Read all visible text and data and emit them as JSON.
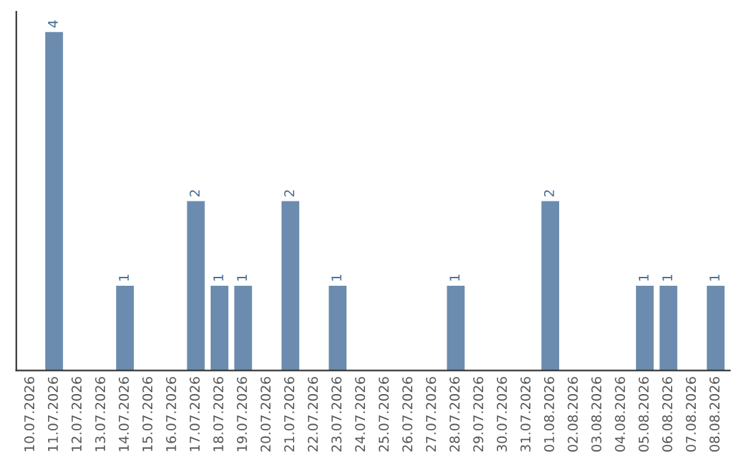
{
  "chart_data": {
    "type": "bar",
    "categories": [
      "10.07.2026",
      "11.07.2026",
      "12.07.2026",
      "13.07.2026",
      "14.07.2026",
      "15.07.2026",
      "16.07.2026",
      "17.07.2026",
      "18.07.2026",
      "19.07.2026",
      "20.07.2026",
      "21.07.2026",
      "22.07.2026",
      "23.07.2026",
      "24.07.2026",
      "25.07.2026",
      "26.07.2026",
      "27.07.2026",
      "28.07.2026",
      "29.07.2026",
      "30.07.2026",
      "31.07.2026",
      "01.08.2026",
      "02.08.2026",
      "03.08.2026",
      "04.08.2026",
      "05.08.2026",
      "06.08.2026",
      "07.08.2026",
      "08.08.2026"
    ],
    "values": [
      null,
      4,
      null,
      null,
      1,
      null,
      null,
      2,
      1,
      1,
      null,
      2,
      null,
      1,
      null,
      null,
      null,
      null,
      1,
      null,
      null,
      null,
      2,
      null,
      null,
      null,
      1,
      1,
      null,
      1
    ],
    "color": "#6b8cae",
    "data_labels": true,
    "tick_labels": "x",
    "grid": false,
    "legend": false
  }
}
